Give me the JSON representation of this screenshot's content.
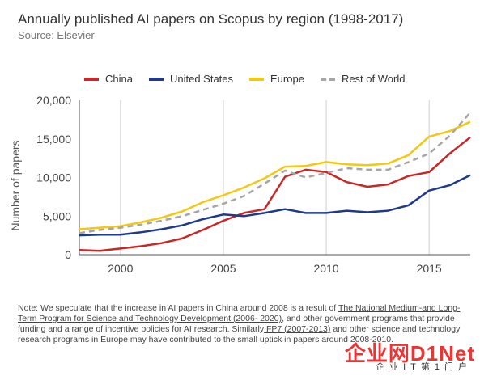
{
  "header": {
    "title": "Annually published AI papers on Scopus by region (1998-2017)",
    "source": "Source: Elsevier"
  },
  "colors": {
    "china": "#c62828",
    "united_states": "#1e3a8a",
    "europe": "#f2c811",
    "rest_of_world": "#a6a6a6"
  },
  "chart_data": {
    "type": "line",
    "title": "Annually published AI papers on Scopus by region (1998-2017)",
    "xlabel": "",
    "ylabel": "Number of papers",
    "xlim": [
      1998,
      2017
    ],
    "ylim": [
      0,
      20000
    ],
    "xticks": [
      2000,
      2005,
      2010,
      2015
    ],
    "yticks": [
      0,
      5000,
      10000,
      15000,
      20000
    ],
    "ytick_labels": [
      "0",
      "5,000",
      "10,000",
      "15,000",
      "20,000"
    ],
    "grid": "vertical",
    "legend_position": "top",
    "x": [
      1998,
      1999,
      2000,
      2001,
      2002,
      2003,
      2004,
      2005,
      2006,
      2007,
      2008,
      2009,
      2010,
      2011,
      2012,
      2013,
      2014,
      2015,
      2016,
      2017
    ],
    "series": [
      {
        "name": "China",
        "color": "#c62828",
        "style": "solid",
        "values": [
          600,
          500,
          800,
          1100,
          1500,
          2100,
          3200,
          4400,
          5400,
          5900,
          10100,
          11000,
          10700,
          9400,
          8800,
          9100,
          10200,
          10700,
          13100,
          15200
        ]
      },
      {
        "name": "United States",
        "color": "#1e3a8a",
        "style": "solid",
        "values": [
          2500,
          2600,
          2600,
          2900,
          3300,
          3800,
          4600,
          5200,
          5000,
          5400,
          5900,
          5400,
          5400,
          5700,
          5500,
          5700,
          6400,
          8300,
          9000,
          10300
        ]
      },
      {
        "name": "Europe",
        "color": "#f2c811",
        "style": "solid",
        "values": [
          3300,
          3500,
          3700,
          4200,
          4800,
          5600,
          6800,
          7700,
          8700,
          9900,
          11400,
          11500,
          12000,
          11700,
          11600,
          11800,
          12900,
          15300,
          16000,
          17200
        ]
      },
      {
        "name": "Rest of World",
        "color": "#a6a6a6",
        "style": "dashed",
        "values": [
          2800,
          3200,
          3500,
          3900,
          4400,
          5000,
          5800,
          6600,
          7600,
          9200,
          10900,
          10000,
          10600,
          11200,
          11000,
          11000,
          12000,
          13100,
          15400,
          18400
        ]
      }
    ]
  },
  "note": {
    "text_1": "Note: We speculate that the increase in AI papers in China around 2008 is a result of ",
    "link_1": "The National Medium-and Long-Term Program for Science and Technology Development (2006- 2020)",
    "text_2": ", and other government programs that provide funding and a range of incentive policies for AI research. Similarly",
    "link_2": " FP7 (2007-2013)",
    "text_3": " and other science and technology research programs in Europe may have contributed to the small uptick in papers around 2008-2010."
  },
  "watermark": {
    "brand": "企业网D1Net",
    "tagline": "企业IT第1门户"
  }
}
